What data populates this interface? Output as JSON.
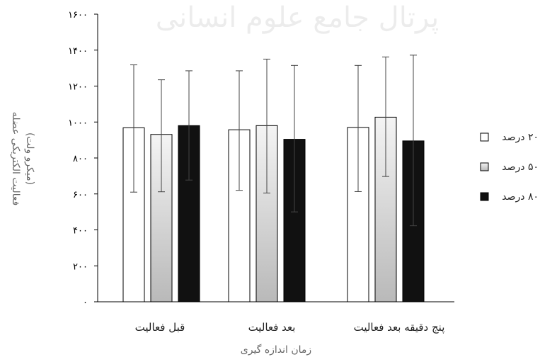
{
  "chart_data": {
    "type": "bar",
    "categories": [
      "قبل فعالیت",
      "بعد فعالیت",
      "پنج  دقیقه بعد فعالیت"
    ],
    "series": [
      {
        "name": "۲۰ درصد",
        "values": [
          968,
          957,
          970
        ],
        "error_low": [
          610,
          620,
          613
        ],
        "error_high": [
          1318,
          1285,
          1315
        ],
        "color": "#ffffff",
        "gradient": false
      },
      {
        "name": "۵۰ درصد",
        "values": [
          931,
          980,
          1027
        ],
        "error_low": [
          612,
          605,
          697
        ],
        "error_high": [
          1235,
          1350,
          1362
        ],
        "color": "#dcdcdc",
        "gradient": true
      },
      {
        "name": "۸۰ درصد",
        "values": [
          980,
          904,
          895
        ],
        "error_low": [
          677,
          500,
          423
        ],
        "error_high": [
          1285,
          1315,
          1372
        ],
        "color": "#111111",
        "gradient": false
      }
    ],
    "ylim": [
      0,
      1600
    ],
    "yticks": [
      "۰",
      "۲۰۰",
      "۴۰۰",
      "۶۰۰",
      "۸۰۰",
      "۱۰۰۰",
      "۱۲۰۰",
      "۱۴۰۰",
      "۱۶۰۰"
    ],
    "ylabel": "فعالیت الکتریکی عضله",
    "ylabel_unit": "(میکرو ولت)",
    "xlabel": "زمان اندازه گیری",
    "legend_position": "right",
    "grid": false
  },
  "watermark": "پرتال جامع علوم انسانی"
}
